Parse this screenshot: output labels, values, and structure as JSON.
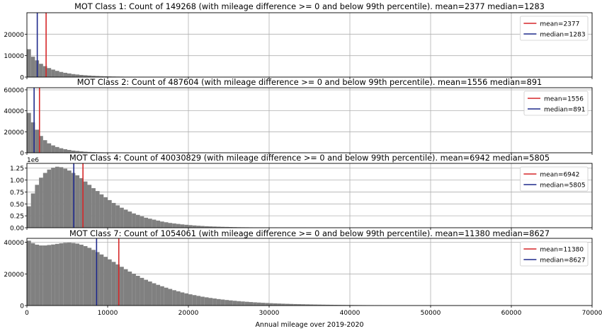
{
  "chart_data": [
    {
      "type": "bar",
      "title": "MOT Class 1: Count of 149268 (with mileage difference >= 0 and below 99th percentile). mean=2377 median=1283",
      "xlim": [
        0,
        70000
      ],
      "ylim": [
        0,
        30000
      ],
      "y_ticks": [
        0,
        10000,
        20000
      ],
      "y_tick_labels": [
        "0",
        "10000",
        "20000"
      ],
      "y_offset_label": "",
      "x_tick_labels_shown": false,
      "grid": true,
      "legend_position": "top-right",
      "bin_width": 500,
      "bins_start": [
        0,
        500,
        1000,
        1500,
        2000,
        2500,
        3000,
        3500,
        4000,
        4500,
        5000,
        5500,
        6000,
        6500,
        7000,
        7500,
        8000,
        8500,
        9000,
        9500,
        10000,
        10500,
        11000,
        11500,
        12000,
        12500,
        13000,
        13500,
        14000,
        14500,
        15000,
        15500,
        16000,
        16500,
        17000,
        17500,
        18000,
        18500,
        19000,
        19500,
        20000,
        20500,
        21000,
        21500,
        22000,
        22500,
        23000,
        23500,
        24000,
        24500,
        25000,
        25500,
        26000,
        26500,
        27000,
        27500,
        28000,
        28500,
        29000,
        29500
      ],
      "counts": [
        13000,
        9500,
        7800,
        6200,
        5100,
        4200,
        3500,
        2900,
        2400,
        2000,
        1700,
        1400,
        1200,
        1000,
        850,
        720,
        610,
        520,
        440,
        380,
        320,
        270,
        230,
        200,
        170,
        145,
        125,
        105,
        90,
        78,
        66,
        56,
        48,
        41,
        35,
        30,
        26,
        22,
        19,
        16,
        14,
        12,
        10,
        9,
        8,
        7,
        6,
        5,
        4,
        4,
        3,
        3,
        2,
        2,
        2,
        1,
        1,
        1,
        1,
        1
      ],
      "vlines": [
        {
          "label": "mean=2377",
          "value": 2377,
          "color": "#d62728"
        },
        {
          "label": "median=1283",
          "value": 1283,
          "color": "#1f2a8c"
        }
      ]
    },
    {
      "type": "bar",
      "title": "MOT Class 2: Count of 487604 (with mileage difference >= 0 and below 99th percentile). mean=1556 median=891",
      "xlim": [
        0,
        70000
      ],
      "ylim": [
        0,
        62000
      ],
      "y_ticks": [
        0,
        20000,
        40000,
        60000
      ],
      "y_tick_labels": [
        "0",
        "20000",
        "40000",
        "60000"
      ],
      "y_offset_label": "",
      "x_tick_labels_shown": false,
      "grid": true,
      "legend_position": "top-right",
      "bin_width": 500,
      "bins_start": [
        0,
        500,
        1000,
        1500,
        2000,
        2500,
        3000,
        3500,
        4000,
        4500,
        5000,
        5500,
        6000,
        6500,
        7000,
        7500,
        8000,
        8500,
        9000,
        9500,
        10000,
        10500,
        11000,
        11500,
        12000,
        12500,
        13000,
        13500,
        14000,
        14500
      ],
      "counts": [
        38000,
        29000,
        22000,
        16000,
        12000,
        9000,
        7000,
        5500,
        4300,
        3400,
        2700,
        2100,
        1700,
        1300,
        1000,
        800,
        650,
        520,
        420,
        340,
        270,
        220,
        180,
        140,
        110,
        90,
        70,
        55,
        45,
        35
      ],
      "vlines": [
        {
          "label": "mean=1556",
          "value": 1556,
          "color": "#d62728"
        },
        {
          "label": "median=891",
          "value": 891,
          "color": "#1f2a8c"
        }
      ]
    },
    {
      "type": "bar",
      "title": "MOT Class 4: Count of 40030829 (with mileage difference >= 0 and below 99th percentile). mean=6942 median=5805",
      "xlim": [
        0,
        70000
      ],
      "ylim": [
        0,
        1.35
      ],
      "y_ticks": [
        0,
        0.25,
        0.5,
        0.75,
        1.0,
        1.25
      ],
      "y_tick_labels": [
        "0.00",
        "0.25",
        "0.50",
        "0.75",
        "1.00",
        "1.25"
      ],
      "y_offset_label": "1e6",
      "x_tick_labels_shown": false,
      "grid": true,
      "legend_position": "top-right",
      "bin_width": 500,
      "bins_start": [
        0,
        500,
        1000,
        1500,
        2000,
        2500,
        3000,
        3500,
        4000,
        4500,
        5000,
        5500,
        6000,
        6500,
        7000,
        7500,
        8000,
        8500,
        9000,
        9500,
        10000,
        10500,
        11000,
        11500,
        12000,
        12500,
        13000,
        13500,
        14000,
        14500,
        15000,
        15500,
        16000,
        16500,
        17000,
        17500,
        18000,
        18500,
        19000,
        19500,
        20000,
        20500,
        21000,
        21500,
        22000,
        22500,
        23000,
        23500,
        24000,
        24500,
        25000,
        25500,
        26000,
        26500,
        27000,
        27500,
        28000,
        28500,
        29000,
        29500,
        30000,
        30500,
        31000,
        31500,
        32000,
        32500,
        33000,
        33500,
        34000,
        34500
      ],
      "counts": [
        0.45,
        0.72,
        0.9,
        1.05,
        1.15,
        1.22,
        1.26,
        1.28,
        1.27,
        1.24,
        1.2,
        1.15,
        1.1,
        1.04,
        0.97,
        0.9,
        0.83,
        0.77,
        0.7,
        0.64,
        0.58,
        0.52,
        0.47,
        0.42,
        0.38,
        0.34,
        0.3,
        0.27,
        0.24,
        0.21,
        0.19,
        0.17,
        0.15,
        0.13,
        0.115,
        0.1,
        0.09,
        0.08,
        0.07,
        0.062,
        0.055,
        0.048,
        0.042,
        0.037,
        0.032,
        0.028,
        0.025,
        0.022,
        0.019,
        0.017,
        0.015,
        0.013,
        0.011,
        0.01,
        0.009,
        0.008,
        0.007,
        0.006,
        0.005,
        0.005,
        0.004,
        0.004,
        0.003,
        0.003,
        0.003,
        0.002,
        0.002,
        0.002,
        0.002,
        0.001
      ],
      "vlines": [
        {
          "label": "mean=6942",
          "value": 6942,
          "color": "#d62728"
        },
        {
          "label": "median=5805",
          "value": 5805,
          "color": "#1f2a8c"
        }
      ]
    },
    {
      "type": "bar",
      "title": "MOT Class 7: Count of 1054061 (with mileage difference >= 0 and below 99th percentile). mean=11380 median=8627",
      "xlim": [
        0,
        70000
      ],
      "ylim": [
        0,
        42500
      ],
      "y_ticks": [
        0,
        20000,
        40000
      ],
      "y_tick_labels": [
        "0",
        "20000",
        "40000"
      ],
      "y_offset_label": "",
      "x_tick_labels_shown": true,
      "x_ticks": [
        0,
        10000,
        20000,
        30000,
        40000,
        50000,
        60000,
        70000
      ],
      "x_tick_labels": [
        "0",
        "10000",
        "20000",
        "30000",
        "40000",
        "50000",
        "60000",
        "70000"
      ],
      "xlabel": "Annual mileage over 2019-2020",
      "grid": true,
      "legend_position": "top-right",
      "bin_width": 500,
      "bins_start": [
        0,
        500,
        1000,
        1500,
        2000,
        2500,
        3000,
        3500,
        4000,
        4500,
        5000,
        5500,
        6000,
        6500,
        7000,
        7500,
        8000,
        8500,
        9000,
        9500,
        10000,
        10500,
        11000,
        11500,
        12000,
        12500,
        13000,
        13500,
        14000,
        14500,
        15000,
        15500,
        16000,
        16500,
        17000,
        17500,
        18000,
        18500,
        19000,
        19500,
        20000,
        20500,
        21000,
        21500,
        22000,
        22500,
        23000,
        23500,
        24000,
        24500,
        25000,
        25500,
        26000,
        26500,
        27000,
        27500,
        28000,
        28500,
        29000,
        29500,
        30000,
        30500,
        31000,
        31500,
        32000,
        32500,
        33000,
        33500,
        34000,
        34500,
        35000,
        35500,
        36000,
        36500,
        37000,
        37500,
        38000,
        38500,
        39000,
        39500,
        40000,
        40500,
        41000,
        41500,
        42000,
        42500,
        43000,
        43500,
        44000,
        44500,
        45000,
        45500,
        46000,
        46500,
        47000,
        47500,
        48000,
        48500,
        49000,
        49500,
        50000,
        50500,
        51000,
        51500,
        52000,
        52500,
        53000,
        53500,
        54000,
        54500,
        55000,
        55500,
        56000,
        56500,
        57000,
        57500,
        58000,
        58500,
        59000,
        59500,
        60000,
        60500,
        61000,
        61500,
        62000
      ],
      "counts": [
        41000,
        39500,
        38500,
        38000,
        38000,
        38300,
        38600,
        39000,
        39400,
        39700,
        39800,
        39600,
        39200,
        38500,
        37600,
        36500,
        35200,
        33800,
        32300,
        30800,
        29200,
        27600,
        26000,
        24500,
        23000,
        21500,
        20100,
        18800,
        17500,
        16300,
        15200,
        14100,
        13100,
        12200,
        11300,
        10500,
        9700,
        9000,
        8300,
        7700,
        7100,
        6600,
        6100,
        5600,
        5200,
        4800,
        4450,
        4100,
        3800,
        3500,
        3250,
        3000,
        2780,
        2570,
        2380,
        2200,
        2030,
        1880,
        1740,
        1610,
        1490,
        1380,
        1280,
        1180,
        1090,
        1010,
        935,
        865,
        800,
        740,
        685,
        635,
        590,
        545,
        505,
        470,
        435,
        405,
        375,
        350,
        325,
        300,
        280,
        262,
        245,
        228,
        213,
        199,
        186,
        174,
        163,
        153,
        143,
        134,
        126,
        118,
        111,
        104,
        98,
        92,
        87,
        82,
        77,
        73,
        69,
        65,
        61,
        58,
        55,
        52,
        49,
        46,
        44,
        42,
        40,
        38,
        36,
        34,
        32,
        30,
        28,
        26,
        24,
        22,
        20
      ],
      "vlines": [
        {
          "label": "mean=11380",
          "value": 11380,
          "color": "#d62728"
        },
        {
          "label": "median=8627",
          "value": 8627,
          "color": "#1f2a8c"
        }
      ]
    }
  ]
}
